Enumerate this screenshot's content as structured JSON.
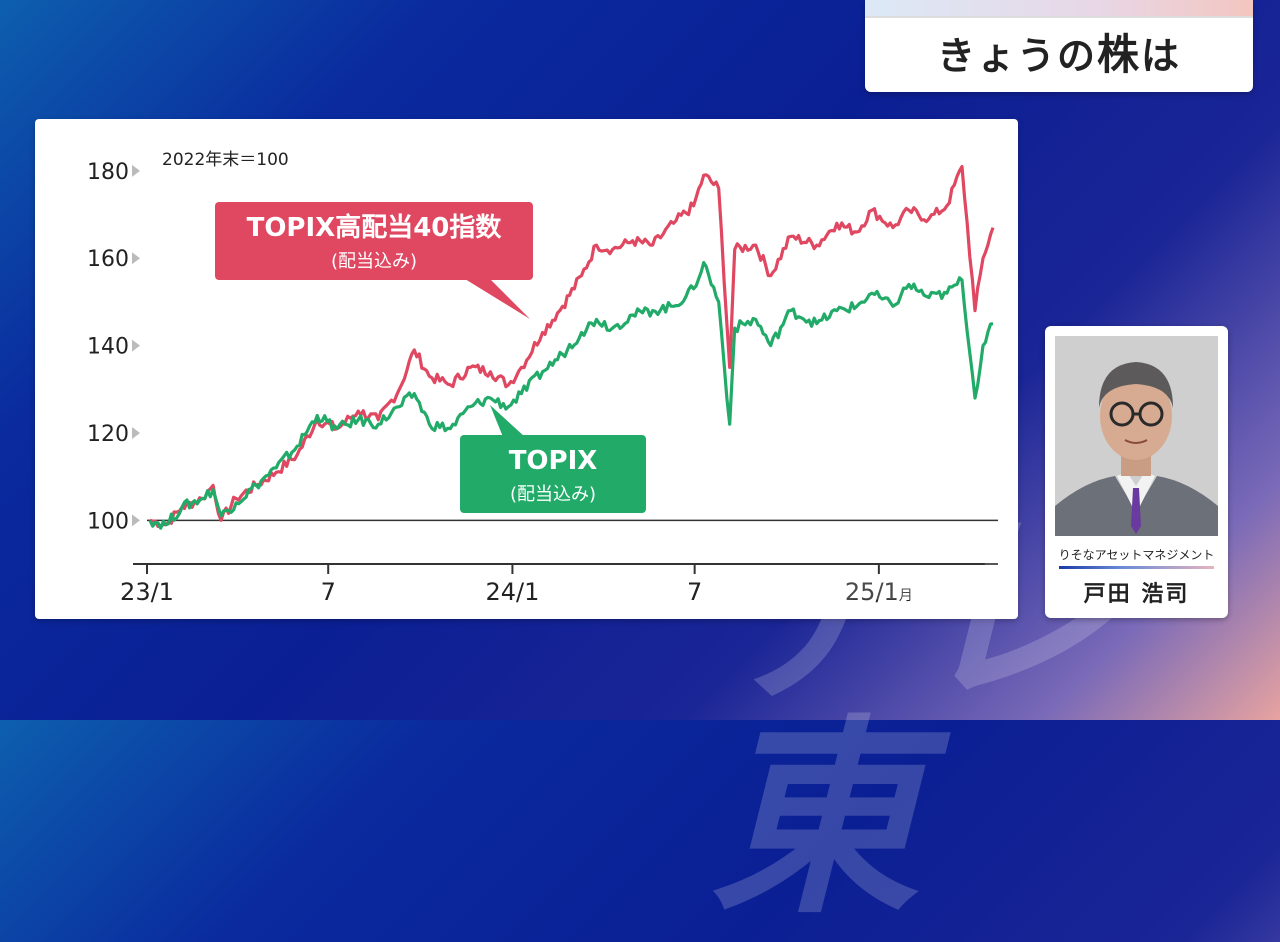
{
  "header": {
    "title_pre": "きょうの",
    "title_big": "株",
    "title_post": "は"
  },
  "chart_data": {
    "type": "line",
    "note": "2022年末＝100",
    "x_tick_labels": [
      {
        "label": "23/1",
        "suffix": ""
      },
      {
        "label": "7",
        "suffix": ""
      },
      {
        "label": "24/1",
        "suffix": ""
      },
      {
        "label": "7",
        "suffix": ""
      },
      {
        "label": "25/1",
        "suffix": "月"
      }
    ],
    "x_ticks": [
      "2023-01",
      "2023-07",
      "2024-01",
      "2024-07",
      "2025-01"
    ],
    "x_range": [
      "2023-01",
      "2025-04"
    ],
    "y_ticks": [
      100,
      120,
      140,
      160,
      180
    ],
    "ylim": [
      90,
      185
    ],
    "series": [
      {
        "name": "TOPIX高配当40指数",
        "sub": "(配当込み)",
        "color": "#e04862",
        "values": [
          [
            "2023-01-04",
            100
          ],
          [
            "2023-01-20",
            99
          ],
          [
            "2023-02-05",
            103
          ],
          [
            "2023-02-25",
            105
          ],
          [
            "2023-03-08",
            108
          ],
          [
            "2023-03-16",
            100
          ],
          [
            "2023-03-31",
            105
          ],
          [
            "2023-04-20",
            108
          ],
          [
            "2023-05-10",
            111
          ],
          [
            "2023-05-31",
            115
          ],
          [
            "2023-06-20",
            123
          ],
          [
            "2023-07-10",
            121
          ],
          [
            "2023-07-31",
            125
          ],
          [
            "2023-08-20",
            123
          ],
          [
            "2023-09-10",
            130
          ],
          [
            "2023-09-25",
            139
          ],
          [
            "2023-10-10",
            133
          ],
          [
            "2023-10-31",
            131
          ],
          [
            "2023-11-20",
            135
          ],
          [
            "2023-12-10",
            134
          ],
          [
            "2023-12-28",
            131
          ],
          [
            "2024-01-10",
            135
          ],
          [
            "2024-01-31",
            143
          ],
          [
            "2024-02-20",
            149
          ],
          [
            "2024-03-10",
            156
          ],
          [
            "2024-03-25",
            163
          ],
          [
            "2024-04-10",
            162
          ],
          [
            "2024-04-30",
            164
          ],
          [
            "2024-05-20",
            163
          ],
          [
            "2024-06-10",
            168
          ],
          [
            "2024-06-30",
            172
          ],
          [
            "2024-07-10",
            179
          ],
          [
            "2024-07-25",
            176
          ],
          [
            "2024-08-05",
            135
          ],
          [
            "2024-08-10",
            162
          ],
          [
            "2024-08-31",
            163
          ],
          [
            "2024-09-15",
            156
          ],
          [
            "2024-10-05",
            165
          ],
          [
            "2024-10-31",
            163
          ],
          [
            "2024-11-20",
            168
          ],
          [
            "2024-12-10",
            166
          ],
          [
            "2024-12-25",
            171
          ],
          [
            "2025-01-15",
            167
          ],
          [
            "2025-01-31",
            171
          ],
          [
            "2025-02-20",
            169
          ],
          [
            "2025-03-10",
            172
          ],
          [
            "2025-03-25",
            181
          ],
          [
            "2025-04-07",
            148
          ],
          [
            "2025-04-15",
            160
          ],
          [
            "2025-04-25",
            167
          ]
        ]
      },
      {
        "name": "TOPIX",
        "sub": "(配当込み)",
        "color": "#22ab68",
        "values": [
          [
            "2023-01-04",
            100
          ],
          [
            "2023-01-20",
            99
          ],
          [
            "2023-02-05",
            103
          ],
          [
            "2023-02-25",
            105
          ],
          [
            "2023-03-08",
            107
          ],
          [
            "2023-03-16",
            101
          ],
          [
            "2023-03-31",
            104
          ],
          [
            "2023-04-20",
            108
          ],
          [
            "2023-05-10",
            112
          ],
          [
            "2023-05-31",
            117
          ],
          [
            "2023-06-20",
            124
          ],
          [
            "2023-07-10",
            121
          ],
          [
            "2023-07-31",
            123
          ],
          [
            "2023-08-20",
            122
          ],
          [
            "2023-09-10",
            126
          ],
          [
            "2023-09-25",
            129
          ],
          [
            "2023-10-10",
            122
          ],
          [
            "2023-10-31",
            121
          ],
          [
            "2023-11-20",
            126
          ],
          [
            "2023-12-10",
            128
          ],
          [
            "2023-12-28",
            126
          ],
          [
            "2024-01-10",
            129
          ],
          [
            "2024-01-31",
            134
          ],
          [
            "2024-02-20",
            138
          ],
          [
            "2024-03-10",
            143
          ],
          [
            "2024-03-25",
            146
          ],
          [
            "2024-04-10",
            144
          ],
          [
            "2024-04-30",
            147
          ],
          [
            "2024-05-20",
            148
          ],
          [
            "2024-06-10",
            149
          ],
          [
            "2024-06-30",
            153
          ],
          [
            "2024-07-10",
            159
          ],
          [
            "2024-07-25",
            150
          ],
          [
            "2024-08-05",
            122
          ],
          [
            "2024-08-10",
            144
          ],
          [
            "2024-08-31",
            146
          ],
          [
            "2024-09-15",
            140
          ],
          [
            "2024-10-05",
            148
          ],
          [
            "2024-10-31",
            145
          ],
          [
            "2024-11-20",
            148
          ],
          [
            "2024-12-10",
            149
          ],
          [
            "2024-12-25",
            152
          ],
          [
            "2025-01-15",
            149
          ],
          [
            "2025-01-31",
            154
          ],
          [
            "2025-02-20",
            151
          ],
          [
            "2025-03-10",
            152
          ],
          [
            "2025-03-25",
            155
          ],
          [
            "2025-04-07",
            128
          ],
          [
            "2025-04-15",
            140
          ],
          [
            "2025-04-25",
            145
          ]
        ]
      }
    ],
    "grid": false,
    "baseline": 100
  },
  "person": {
    "company": "りそなアセットマネジメント",
    "name": "戸田 浩司"
  },
  "watermark": "テレ東"
}
